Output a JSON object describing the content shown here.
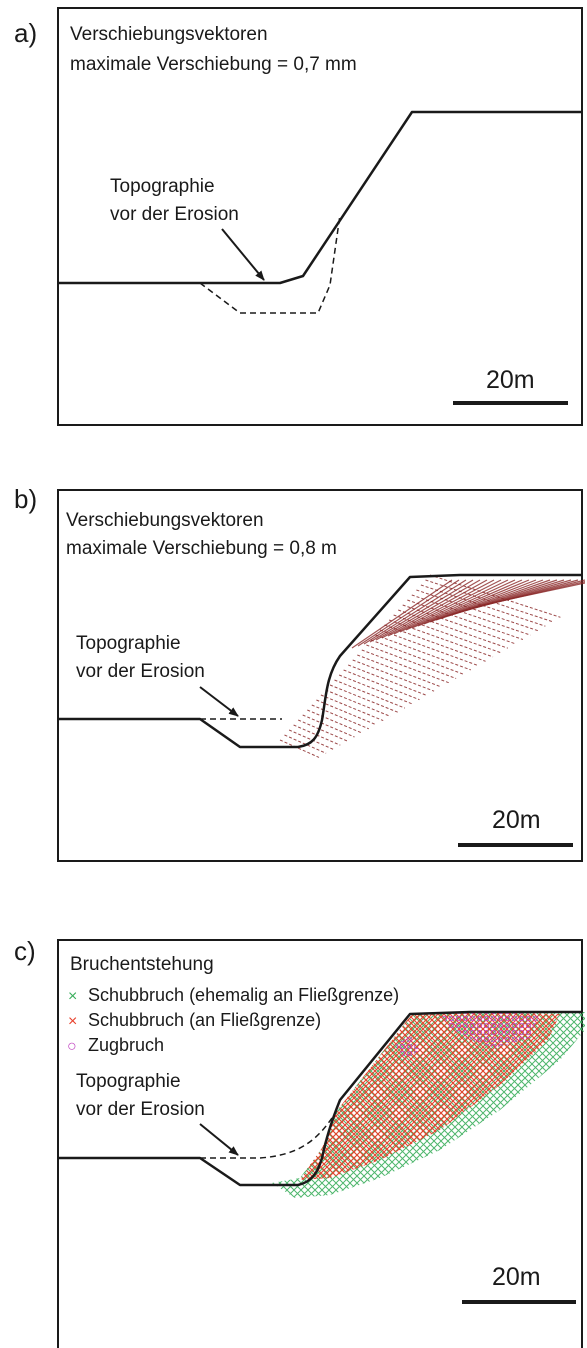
{
  "panels": [
    {
      "id": "a",
      "label": "a)",
      "title_line1": "Verschiebungsvektoren",
      "title_line2": "maximale Verschiebung = 0,7 mm",
      "annotation_line1": "Topographie",
      "annotation_line2": "vor der Erosion",
      "scale_label": "20m"
    },
    {
      "id": "b",
      "label": "b)",
      "title_line1": "Verschiebungsvektoren",
      "title_line2": "maximale Verschiebung = 0,8 m",
      "annotation_line1": "Topographie",
      "annotation_line2": "vor der Erosion",
      "scale_label": "20m",
      "vector_color": "#8b2a2a"
    },
    {
      "id": "c",
      "label": "c)",
      "title_line1": "Bruchentstehung",
      "legend": [
        {
          "marker": "×",
          "text": "Schubbruch (ehemalig an Fließgrenze)",
          "color": "#3aae5c"
        },
        {
          "marker": "×",
          "text": "Schubbruch (an Fließgrenze)",
          "color": "#e8412c"
        },
        {
          "marker": "○",
          "text": "Zugbruch",
          "color": "#c248c2"
        }
      ],
      "annotation_line1": "Topographie",
      "annotation_line2": "vor der Erosion",
      "scale_label": "20m"
    }
  ]
}
